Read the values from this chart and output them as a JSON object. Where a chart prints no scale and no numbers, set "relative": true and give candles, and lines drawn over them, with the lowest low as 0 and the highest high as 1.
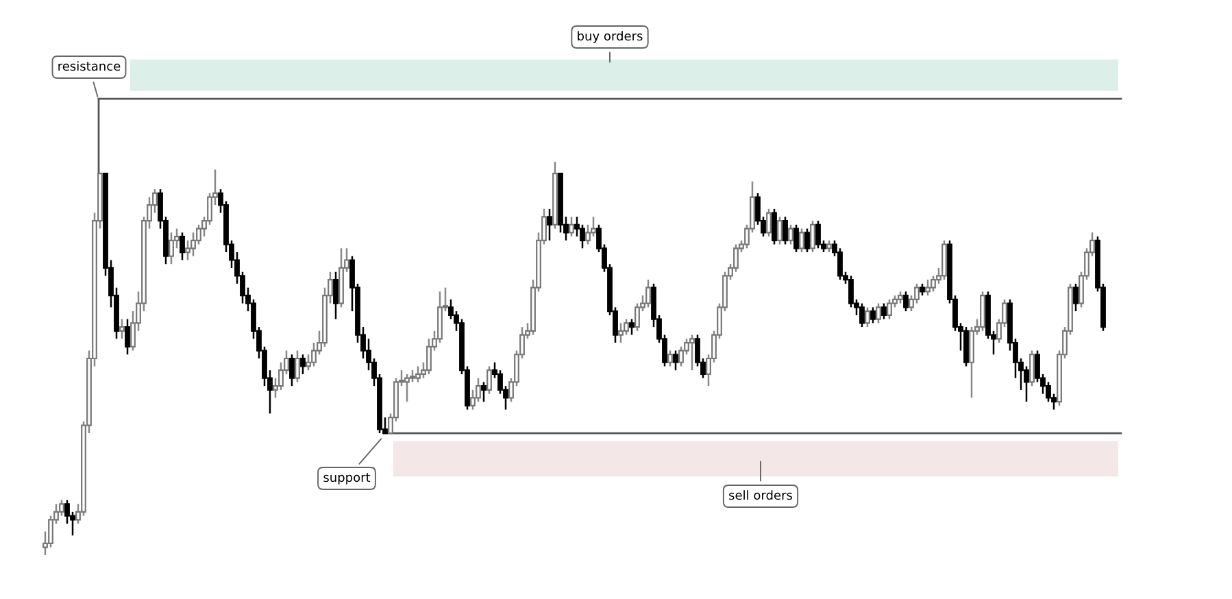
{
  "chart_data": {
    "type": "candlestick",
    "relative": true,
    "categories": [
      null,
      null,
      null,
      null,
      null,
      null,
      null,
      null,
      null,
      null,
      null,
      null,
      null,
      null,
      null,
      null,
      null,
      null,
      null,
      null,
      null,
      null,
      null,
      null,
      null,
      null,
      null,
      null,
      null,
      null,
      null,
      null,
      null,
      null,
      null,
      null,
      null,
      null,
      null,
      null,
      null,
      null,
      null,
      null,
      null,
      null,
      null,
      null,
      null,
      null,
      null,
      null,
      null,
      null,
      null,
      null,
      null,
      null,
      null,
      null,
      null,
      null,
      null,
      null,
      null,
      null,
      null,
      null,
      null,
      null,
      null,
      null,
      null,
      null,
      null,
      null,
      null,
      null,
      null,
      null,
      null,
      null,
      null,
      null,
      null,
      null,
      null,
      null,
      null,
      null,
      null,
      null,
      null,
      null,
      null,
      null,
      null,
      null,
      null,
      null,
      null,
      null,
      null,
      null,
      null,
      null,
      null,
      null,
      null,
      null,
      null,
      null,
      null,
      null,
      null,
      null,
      null,
      null,
      null,
      null,
      null,
      null,
      null,
      null,
      null,
      null,
      null,
      null,
      null,
      null,
      null,
      null,
      null,
      null,
      null,
      null,
      null,
      null,
      null,
      null,
      null,
      null,
      null,
      null,
      null,
      null,
      null,
      null,
      null,
      null,
      null,
      null,
      null,
      null,
      null,
      null,
      null,
      null,
      null,
      null,
      null,
      null,
      null,
      null,
      null,
      null,
      null,
      null,
      null,
      null,
      null,
      null,
      null,
      null,
      null,
      null,
      null,
      null,
      null,
      null,
      null,
      null,
      null,
      null,
      null,
      null,
      null,
      null,
      null,
      null,
      null,
      null,
      null,
      null
    ],
    "ohlc": [
      [
        0.02,
        0.06,
        0,
        0.03
      ],
      [
        0.03,
        0.1,
        0.02,
        0.09
      ],
      [
        0.09,
        0.13,
        0.08,
        0.11
      ],
      [
        0.11,
        0.14,
        0.1,
        0.13
      ],
      [
        0.13,
        0.14,
        0.08,
        0.1
      ],
      [
        0.1,
        0.11,
        0.05,
        0.09
      ],
      [
        0.09,
        0.13,
        0.08,
        0.11
      ],
      [
        0.11,
        0.34,
        0.1,
        0.33
      ],
      [
        0.33,
        0.52,
        0.31,
        0.5
      ],
      [
        0.5,
        0.87,
        0.48,
        0.85
      ],
      [
        0.85,
        0.97,
        0.83,
        0.97
      ],
      [
        0.97,
        0.97,
        0.71,
        0.73
      ],
      [
        0.73,
        0.75,
        0.63,
        0.66
      ],
      [
        0.66,
        0.68,
        0.55,
        0.57
      ],
      [
        0.57,
        0.6,
        0.55,
        0.58
      ],
      [
        0.58,
        0.6,
        0.51,
        0.53
      ],
      [
        0.53,
        0.62,
        0.52,
        0.59
      ],
      [
        0.59,
        0.67,
        0.57,
        0.64
      ],
      [
        0.64,
        0.86,
        0.62,
        0.85
      ],
      [
        0.85,
        0.91,
        0.83,
        0.89
      ],
      [
        0.89,
        0.93,
        0.87,
        0.92
      ],
      [
        0.92,
        0.93,
        0.83,
        0.85
      ],
      [
        0.85,
        0.86,
        0.74,
        0.76
      ],
      [
        0.76,
        0.82,
        0.74,
        0.8
      ],
      [
        0.8,
        0.83,
        0.78,
        0.81
      ],
      [
        0.81,
        0.82,
        0.75,
        0.77
      ],
      [
        0.77,
        0.8,
        0.75,
        0.78
      ],
      [
        0.78,
        0.82,
        0.76,
        0.8
      ],
      [
        0.8,
        0.84,
        0.79,
        0.83
      ],
      [
        0.83,
        0.86,
        0.81,
        0.85
      ],
      [
        0.85,
        0.92,
        0.84,
        0.91
      ],
      [
        0.91,
        0.98,
        0.89,
        0.92
      ],
      [
        0.92,
        0.93,
        0.87,
        0.89
      ],
      [
        0.89,
        0.9,
        0.77,
        0.79
      ],
      [
        0.79,
        0.8,
        0.73,
        0.75
      ],
      [
        0.75,
        0.77,
        0.69,
        0.71
      ],
      [
        0.71,
        0.72,
        0.64,
        0.66
      ],
      [
        0.66,
        0.68,
        0.62,
        0.64
      ],
      [
        0.64,
        0.65,
        0.55,
        0.57
      ],
      [
        0.57,
        0.58,
        0.5,
        0.52
      ],
      [
        0.52,
        0.53,
        0.43,
        0.45
      ],
      [
        0.45,
        0.47,
        0.36,
        0.42
      ],
      [
        0.42,
        0.45,
        0.4,
        0.43
      ],
      [
        0.43,
        0.49,
        0.42,
        0.47
      ],
      [
        0.47,
        0.52,
        0.46,
        0.5
      ],
      [
        0.5,
        0.51,
        0.43,
        0.45
      ],
      [
        0.45,
        0.52,
        0.44,
        0.5
      ],
      [
        0.5,
        0.51,
        0.46,
        0.48
      ],
      [
        0.48,
        0.51,
        0.47,
        0.49
      ],
      [
        0.49,
        0.54,
        0.48,
        0.52
      ],
      [
        0.52,
        0.57,
        0.51,
        0.54
      ],
      [
        0.54,
        0.68,
        0.53,
        0.66
      ],
      [
        0.66,
        0.72,
        0.64,
        0.7
      ],
      [
        0.7,
        0.72,
        0.6,
        0.64
      ],
      [
        0.64,
        0.78,
        0.63,
        0.73
      ],
      [
        0.73,
        0.78,
        0.72,
        0.75
      ],
      [
        0.75,
        0.76,
        0.62,
        0.68
      ],
      [
        0.68,
        0.69,
        0.54,
        0.56
      ],
      [
        0.56,
        0.58,
        0.5,
        0.52
      ],
      [
        0.52,
        0.55,
        0.47,
        0.49
      ],
      [
        0.49,
        0.5,
        0.43,
        0.45
      ],
      [
        0.45,
        0.46,
        0.31,
        0.32
      ],
      [
        0.32,
        0.35,
        0.31,
        0.31
      ],
      [
        0.31,
        0.36,
        0.31,
        0.35
      ],
      [
        0.35,
        0.45,
        0.34,
        0.44
      ],
      [
        0.44,
        0.47,
        0.43,
        0.44
      ],
      [
        0.44,
        0.46,
        0.39,
        0.45
      ],
      [
        0.45,
        0.47,
        0.44,
        0.45
      ],
      [
        0.45,
        0.48,
        0.44,
        0.46
      ],
      [
        0.46,
        0.49,
        0.45,
        0.47
      ],
      [
        0.47,
        0.55,
        0.46,
        0.53
      ],
      [
        0.53,
        0.57,
        0.52,
        0.55
      ],
      [
        0.55,
        0.67,
        0.54,
        0.63
      ],
      [
        0.63,
        0.68,
        0.62,
        0.63
      ],
      [
        0.63,
        0.65,
        0.6,
        0.61
      ],
      [
        0.61,
        0.62,
        0.57,
        0.59
      ],
      [
        0.59,
        0.6,
        0.46,
        0.47
      ],
      [
        0.47,
        0.48,
        0.37,
        0.38
      ],
      [
        0.38,
        0.42,
        0.37,
        0.4
      ],
      [
        0.4,
        0.45,
        0.39,
        0.43
      ],
      [
        0.43,
        0.44,
        0.39,
        0.42
      ],
      [
        0.42,
        0.48,
        0.41,
        0.47
      ],
      [
        0.47,
        0.49,
        0.45,
        0.46
      ],
      [
        0.46,
        0.47,
        0.41,
        0.42
      ],
      [
        0.42,
        0.43,
        0.37,
        0.4
      ],
      [
        0.4,
        0.45,
        0.39,
        0.44
      ],
      [
        0.44,
        0.52,
        0.43,
        0.51
      ],
      [
        0.51,
        0.58,
        0.5,
        0.56
      ],
      [
        0.56,
        0.59,
        0.55,
        0.57
      ],
      [
        0.57,
        0.7,
        0.56,
        0.68
      ],
      [
        0.68,
        0.82,
        0.67,
        0.8
      ],
      [
        0.8,
        0.88,
        0.79,
        0.86
      ],
      [
        0.86,
        0.88,
        0.8,
        0.84
      ],
      [
        0.84,
        1.0,
        0.83,
        0.97
      ],
      [
        0.97,
        0.97,
        0.82,
        0.84
      ],
      [
        0.84,
        0.86,
        0.8,
        0.82
      ],
      [
        0.82,
        0.86,
        0.81,
        0.84
      ],
      [
        0.84,
        0.86,
        0.81,
        0.83
      ],
      [
        0.83,
        0.84,
        0.78,
        0.8
      ],
      [
        0.8,
        0.84,
        0.79,
        0.82
      ],
      [
        0.82,
        0.86,
        0.81,
        0.83
      ],
      [
        0.83,
        0.84,
        0.77,
        0.78
      ],
      [
        0.78,
        0.79,
        0.72,
        0.73
      ],
      [
        0.73,
        0.74,
        0.61,
        0.62
      ],
      [
        0.62,
        0.63,
        0.54,
        0.56
      ],
      [
        0.56,
        0.59,
        0.54,
        0.57
      ],
      [
        0.57,
        0.6,
        0.56,
        0.59
      ],
      [
        0.59,
        0.6,
        0.56,
        0.58
      ],
      [
        0.58,
        0.64,
        0.57,
        0.63
      ],
      [
        0.63,
        0.66,
        0.62,
        0.64
      ],
      [
        0.64,
        0.7,
        0.63,
        0.68
      ],
      [
        0.68,
        0.69,
        0.58,
        0.6
      ],
      [
        0.6,
        0.61,
        0.54,
        0.55
      ],
      [
        0.55,
        0.56,
        0.48,
        0.49
      ],
      [
        0.49,
        0.52,
        0.48,
        0.51
      ],
      [
        0.51,
        0.52,
        0.47,
        0.49
      ],
      [
        0.49,
        0.53,
        0.48,
        0.52
      ],
      [
        0.52,
        0.55,
        0.51,
        0.54
      ],
      [
        0.54,
        0.56,
        0.47,
        0.55
      ],
      [
        0.55,
        0.56,
        0.48,
        0.49
      ],
      [
        0.49,
        0.5,
        0.45,
        0.46
      ],
      [
        0.46,
        0.51,
        0.43,
        0.5
      ],
      [
        0.5,
        0.57,
        0.49,
        0.56
      ],
      [
        0.56,
        0.64,
        0.55,
        0.63
      ],
      [
        0.63,
        0.72,
        0.62,
        0.71
      ],
      [
        0.71,
        0.74,
        0.7,
        0.73
      ],
      [
        0.73,
        0.79,
        0.72,
        0.78
      ],
      [
        0.78,
        0.8,
        0.77,
        0.79
      ],
      [
        0.79,
        0.84,
        0.78,
        0.83
      ],
      [
        0.83,
        0.95,
        0.82,
        0.91
      ],
      [
        0.91,
        0.92,
        0.84,
        0.85
      ],
      [
        0.85,
        0.86,
        0.81,
        0.82
      ],
      [
        0.82,
        0.88,
        0.81,
        0.87
      ],
      [
        0.87,
        0.88,
        0.79,
        0.8
      ],
      [
        0.8,
        0.86,
        0.79,
        0.85
      ],
      [
        0.85,
        0.86,
        0.79,
        0.8
      ],
      [
        0.8,
        0.84,
        0.79,
        0.83
      ],
      [
        0.83,
        0.84,
        0.77,
        0.78
      ],
      [
        0.78,
        0.83,
        0.77,
        0.82
      ],
      [
        0.82,
        0.83,
        0.77,
        0.78
      ],
      [
        0.78,
        0.85,
        0.77,
        0.84
      ],
      [
        0.84,
        0.85,
        0.78,
        0.79
      ],
      [
        0.79,
        0.8,
        0.77,
        0.78
      ],
      [
        0.78,
        0.8,
        0.77,
        0.79
      ],
      [
        0.79,
        0.8,
        0.76,
        0.77
      ],
      [
        0.77,
        0.78,
        0.7,
        0.71
      ],
      [
        0.71,
        0.72,
        0.69,
        0.7
      ],
      [
        0.7,
        0.71,
        0.63,
        0.64
      ],
      [
        0.64,
        0.65,
        0.61,
        0.63
      ],
      [
        0.63,
        0.64,
        0.58,
        0.59
      ],
      [
        0.59,
        0.63,
        0.58,
        0.62
      ],
      [
        0.62,
        0.63,
        0.59,
        0.6
      ],
      [
        0.6,
        0.64,
        0.59,
        0.63
      ],
      [
        0.63,
        0.64,
        0.6,
        0.61
      ],
      [
        0.61,
        0.65,
        0.6,
        0.64
      ],
      [
        0.64,
        0.66,
        0.63,
        0.65
      ],
      [
        0.65,
        0.67,
        0.64,
        0.66
      ],
      [
        0.66,
        0.67,
        0.62,
        0.63
      ],
      [
        0.63,
        0.66,
        0.62,
        0.65
      ],
      [
        0.65,
        0.69,
        0.64,
        0.68
      ],
      [
        0.68,
        0.69,
        0.66,
        0.67
      ],
      [
        0.67,
        0.7,
        0.66,
        0.68
      ],
      [
        0.68,
        0.71,
        0.67,
        0.7
      ],
      [
        0.7,
        0.73,
        0.69,
        0.71
      ],
      [
        0.71,
        0.8,
        0.7,
        0.79
      ],
      [
        0.79,
        0.8,
        0.64,
        0.65
      ],
      [
        0.65,
        0.66,
        0.57,
        0.58
      ],
      [
        0.58,
        0.59,
        0.52,
        0.57
      ],
      [
        0.57,
        0.58,
        0.48,
        0.49
      ],
      [
        0.49,
        0.58,
        0.4,
        0.57
      ],
      [
        0.57,
        0.6,
        0.56,
        0.58
      ],
      [
        0.58,
        0.67,
        0.57,
        0.66
      ],
      [
        0.66,
        0.67,
        0.55,
        0.56
      ],
      [
        0.56,
        0.57,
        0.51,
        0.55
      ],
      [
        0.55,
        0.6,
        0.54,
        0.59
      ],
      [
        0.59,
        0.65,
        0.58,
        0.64
      ],
      [
        0.64,
        0.65,
        0.52,
        0.54
      ],
      [
        0.54,
        0.55,
        0.45,
        0.49
      ],
      [
        0.49,
        0.5,
        0.42,
        0.47
      ],
      [
        0.47,
        0.48,
        0.39,
        0.44
      ],
      [
        0.44,
        0.52,
        0.43,
        0.51
      ],
      [
        0.51,
        0.52,
        0.44,
        0.45
      ],
      [
        0.45,
        0.46,
        0.41,
        0.43
      ],
      [
        0.43,
        0.44,
        0.39,
        0.4
      ],
      [
        0.4,
        0.41,
        0.37,
        0.39
      ],
      [
        0.39,
        0.52,
        0.38,
        0.51
      ],
      [
        0.51,
        0.58,
        0.5,
        0.57
      ],
      [
        0.57,
        0.69,
        0.56,
        0.68
      ],
      [
        0.68,
        0.69,
        0.62,
        0.64
      ],
      [
        0.64,
        0.72,
        0.63,
        0.71
      ],
      [
        0.71,
        0.78,
        0.7,
        0.77
      ],
      [
        0.77,
        0.82,
        0.76,
        0.8
      ],
      [
        0.8,
        0.81,
        0.67,
        0.68
      ],
      [
        0.68,
        0.69,
        0.57,
        0.58
      ]
    ],
    "ref_lines": [
      {
        "axis": "y",
        "value": 1.16,
        "label": "resistance",
        "color": "#555555"
      },
      {
        "axis": "y",
        "value": 0.31,
        "label": "support",
        "color": "#555555"
      }
    ],
    "bands": [
      {
        "axis": "y",
        "from": 1.18,
        "to": 1.26,
        "label": "buy orders",
        "color": "#dcefe9"
      },
      {
        "axis": "y",
        "from": 0.2,
        "to": 0.29,
        "label": "sell orders",
        "color": "#f3e7e8"
      }
    ]
  }
}
